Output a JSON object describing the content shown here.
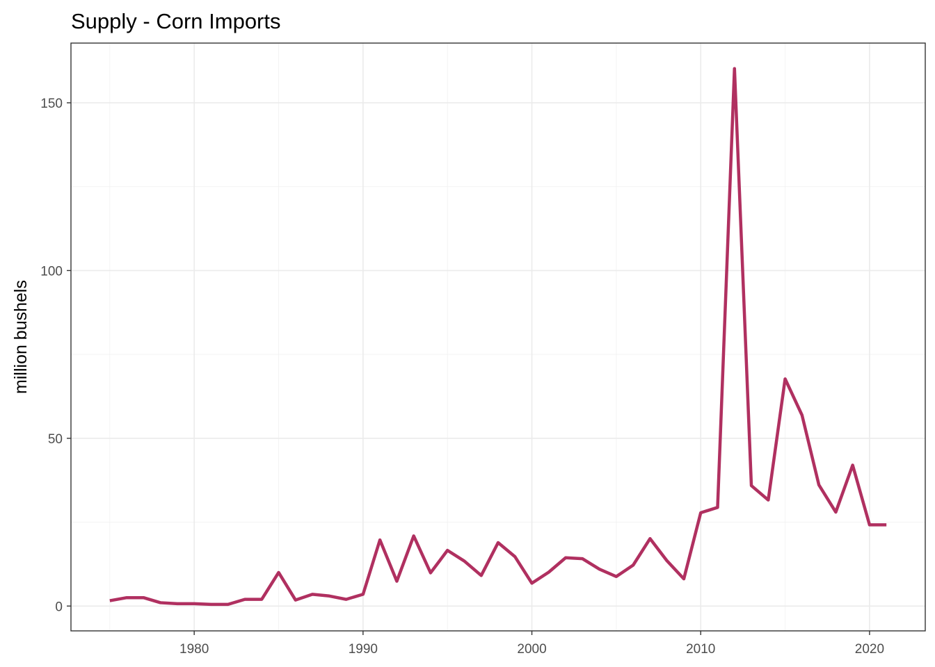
{
  "chart_data": {
    "type": "line",
    "title": "Supply - Corn Imports",
    "xlabel": "",
    "ylabel": "million bushels",
    "xlim": [
      1972.7,
      2023.3
    ],
    "ylim": [
      -7.4,
      167.8
    ],
    "x_ticks": [
      1980,
      1990,
      2000,
      2010,
      2020
    ],
    "x_tick_labels": [
      "1980",
      "1990",
      "2000",
      "2010",
      "2020"
    ],
    "x_minor_ticks": [
      1975,
      1985,
      1995,
      2005,
      2015
    ],
    "y_ticks": [
      0,
      50,
      100,
      150
    ],
    "y_tick_labels": [
      "0",
      "50",
      "100",
      "150"
    ],
    "y_minor_ticks": [
      25,
      75,
      125
    ],
    "grid": true,
    "legend": "none",
    "series": [
      {
        "color": "#b03060",
        "x": [
          1975,
          1976,
          1977,
          1978,
          1979,
          1980,
          1981,
          1982,
          1983,
          1984,
          1985,
          1986,
          1987,
          1988,
          1989,
          1990,
          1991,
          1992,
          1993,
          1994,
          1995,
          1996,
          1997,
          1998,
          1999,
          2000,
          2001,
          2002,
          2003,
          2004,
          2005,
          2006,
          2007,
          2008,
          2009,
          2010,
          2011,
          2012,
          2013,
          2014,
          2015,
          2016,
          2017,
          2018,
          2019,
          2020,
          2021
        ],
        "y": [
          1.6,
          2.5,
          2.5,
          1.0,
          0.7,
          0.7,
          0.5,
          0.5,
          2.0,
          2.0,
          10.0,
          1.8,
          3.5,
          3.0,
          2.0,
          3.5,
          19.7,
          7.4,
          20.9,
          9.9,
          16.6,
          13.4,
          9.1,
          18.9,
          14.7,
          6.8,
          10.1,
          14.4,
          14.1,
          11.0,
          8.8,
          12.2,
          20.1,
          13.5,
          8.1,
          27.8,
          29.4,
          160.2,
          35.9,
          31.6,
          67.7,
          56.9,
          36.1,
          28.0,
          42.0,
          24.2,
          24.2
        ]
      }
    ]
  }
}
